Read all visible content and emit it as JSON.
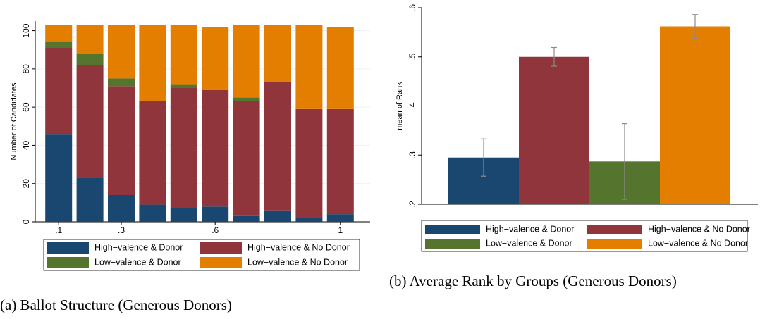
{
  "chart_data": [
    {
      "type": "bar",
      "stacked": true,
      "caption": "(a) Ballot Structure (Generous Donors)",
      "ylabel": "Number of Candidates",
      "categories": [
        ".1",
        null,
        ".3",
        null,
        null,
        ".6",
        null,
        null,
        null,
        "1"
      ],
      "series": [
        {
          "name": "High−valence & Donor",
          "color": "#1a476f",
          "values": [
            46,
            23,
            14,
            9,
            7,
            8,
            3,
            6,
            2,
            4
          ]
        },
        {
          "name": "High−valence & No Donor",
          "color": "#90353b",
          "values": [
            45,
            59,
            57,
            54,
            63,
            61,
            60,
            67,
            57,
            55
          ]
        },
        {
          "name": "Low−valence & Donor",
          "color": "#55752f",
          "values": [
            3,
            6,
            4,
            0,
            2,
            0,
            2,
            0,
            0,
            0
          ]
        },
        {
          "name": "Low−valence & No Donor",
          "color": "#e37e00",
          "values": [
            9,
            15,
            28,
            40,
            31,
            33,
            38,
            30,
            44,
            43
          ]
        }
      ],
      "ylim": [
        0,
        105
      ],
      "yticks": [
        0,
        20,
        40,
        60,
        80,
        100
      ],
      "grid": true
    },
    {
      "type": "bar",
      "stacked": false,
      "caption": "(b) Average Rank by Groups (Generous Donors)",
      "ylabel": "mean of Rank",
      "series": [
        {
          "name": "High−valence & Donor",
          "color": "#1a476f",
          "values": [
            0.295
          ],
          "errors": [
            0.038
          ]
        },
        {
          "name": "High−valence & No Donor",
          "color": "#90353b",
          "values": [
            0.5
          ],
          "errors": [
            0.019
          ]
        },
        {
          "name": "Low−valence & Donor",
          "color": "#55752f",
          "values": [
            0.287
          ],
          "errors": [
            0.077
          ]
        },
        {
          "name": "Low−valence & No Donor",
          "color": "#e37e00",
          "values": [
            0.562
          ],
          "errors": [
            0.024
          ]
        }
      ],
      "ylim": [
        0.2,
        0.6
      ],
      "yticks": [
        {
          "value": 0.2,
          "label": ".2"
        },
        {
          "value": 0.3,
          "label": ".3"
        },
        {
          "value": 0.4,
          "label": ".4"
        },
        {
          "value": 0.5,
          "label": ".5"
        },
        {
          "value": 0.6,
          "label": ".6"
        }
      ],
      "grid": false
    }
  ]
}
